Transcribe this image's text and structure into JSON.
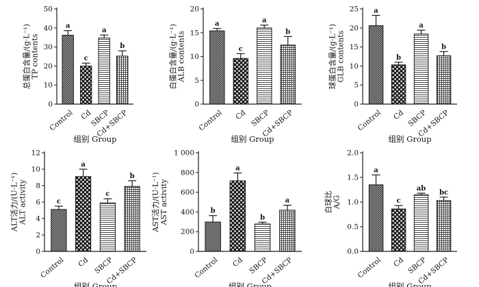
{
  "groups": [
    "Control",
    "Cd",
    "SBCP",
    "Cd+SBCP"
  ],
  "colors": {
    "bar_stroke": "#1a1a1a",
    "axis": "#1a1a1a",
    "text": "#111111",
    "background": "#ffffff"
  },
  "chart_data": [
    {
      "type": "bar",
      "id": "tp",
      "ylabel_cn": "总蛋白含量/(g·L⁻¹)",
      "ylabel_en": "TP contents",
      "xlabel": "组别 Group",
      "categories": [
        "Control",
        "Cd",
        "SBCP",
        "Cd+SBCP"
      ],
      "values": [
        36.2,
        20.0,
        34.7,
        25.2
      ],
      "errors": [
        2.4,
        1.5,
        1.6,
        2.8
      ],
      "letters": [
        "a",
        "c",
        "a",
        "b"
      ],
      "ylim": [
        0,
        50
      ],
      "yticks": [
        0,
        10,
        20,
        30,
        40,
        50
      ],
      "ytick_labels": [
        "0",
        "10",
        "20",
        "30",
        "40",
        "50"
      ]
    },
    {
      "type": "bar",
      "id": "alb",
      "ylabel_cn": "白蛋白含量/(g·L⁻¹)",
      "ylabel_en": "ALB contents",
      "xlabel": "组别 Group",
      "categories": [
        "Control",
        "Cd",
        "SBCP",
        "Cd+SBCP"
      ],
      "values": [
        15.4,
        9.6,
        16.0,
        12.4
      ],
      "errors": [
        0.5,
        1.0,
        0.6,
        1.8
      ],
      "letters": [
        "a",
        "c",
        "a",
        "b"
      ],
      "ylim": [
        0,
        20
      ],
      "yticks": [
        0,
        5,
        10,
        15,
        20
      ],
      "ytick_labels": [
        "0",
        "5",
        "10",
        "15",
        "20"
      ]
    },
    {
      "type": "bar",
      "id": "glb",
      "ylabel_cn": "球蛋白含量/(g·L⁻¹)",
      "ylabel_en": "GLB contents",
      "xlabel": "组别 Group",
      "categories": [
        "Control",
        "Cd",
        "SBCP",
        "Cd+SBCP"
      ],
      "values": [
        20.6,
        10.3,
        18.4,
        12.7
      ],
      "errors": [
        2.7,
        0.7,
        1.0,
        1.1
      ],
      "letters": [
        "a",
        "b",
        "a",
        "b"
      ],
      "ylim": [
        0,
        25
      ],
      "yticks": [
        0,
        5,
        10,
        15,
        20,
        25
      ],
      "ytick_labels": [
        "0",
        "5",
        "10",
        "15",
        "20",
        "25"
      ]
    },
    {
      "type": "bar",
      "id": "alt",
      "ylabel_cn": "ALT活力/(U·L⁻¹)",
      "ylabel_en": "ALT activity",
      "xlabel": "组别 Group",
      "categories": [
        "Control",
        "Cd",
        "SBCP",
        "Cd+SBCP"
      ],
      "values": [
        5.1,
        9.1,
        5.9,
        7.9
      ],
      "errors": [
        0.4,
        0.9,
        0.5,
        0.7
      ],
      "letters": [
        "c",
        "a",
        "c",
        "b"
      ],
      "ylim": [
        0,
        12
      ],
      "yticks": [
        0,
        2,
        4,
        6,
        8,
        10,
        12
      ],
      "ytick_labels": [
        "0",
        "2",
        "4",
        "6",
        "8",
        "10",
        "12"
      ]
    },
    {
      "type": "bar",
      "id": "ast",
      "ylabel_cn": "AST活力/(U·L⁻¹)",
      "ylabel_en": "AST activity",
      "xlabel": "组别 Group",
      "categories": [
        "Control",
        "Cd",
        "SBCP",
        "Cd+SBCP"
      ],
      "values": [
        298,
        715,
        278,
        418
      ],
      "errors": [
        65,
        80,
        18,
        50
      ],
      "letters": [
        "b",
        "a",
        "b",
        "a"
      ],
      "ylim": [
        0,
        1000
      ],
      "yticks": [
        0,
        200,
        400,
        600,
        800,
        1000
      ],
      "ytick_labels": [
        "0",
        "200",
        "400",
        "600",
        "800",
        "1 000"
      ]
    },
    {
      "type": "bar",
      "id": "ag",
      "ylabel_cn": "白球比",
      "ylabel_en": "A/G",
      "xlabel": "组别 Group",
      "categories": [
        "Control",
        "Cd",
        "SBCP",
        "Cd+SBCP"
      ],
      "values": [
        1.35,
        0.86,
        1.15,
        1.03
      ],
      "errors": [
        0.2,
        0.07,
        0.03,
        0.07
      ],
      "letters": [
        "a",
        "c",
        "ab",
        "bc"
      ],
      "ylim": [
        0,
        2.0
      ],
      "yticks": [
        0,
        0.5,
        1.0,
        1.5,
        2.0
      ],
      "ytick_labels": [
        "0.0",
        "0.5",
        "1.0",
        "1.5",
        "2.0"
      ]
    }
  ]
}
